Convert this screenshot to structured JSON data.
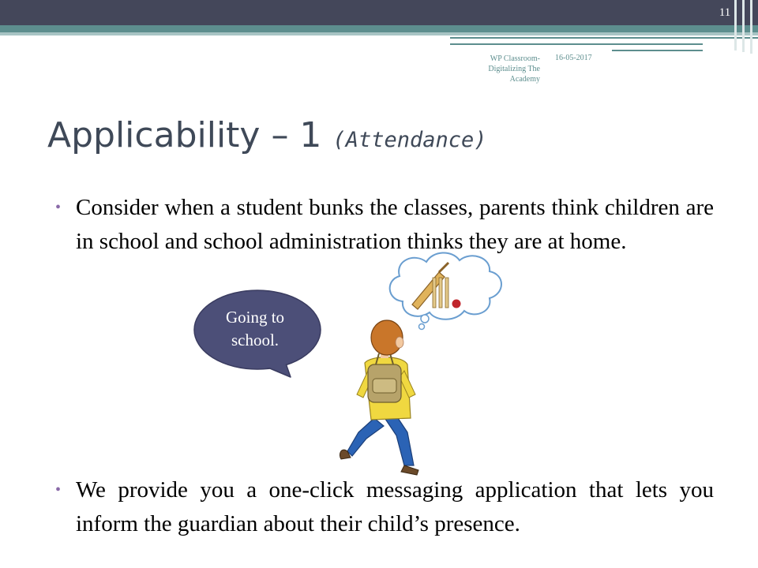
{
  "slide": {
    "number": "11",
    "footer_title": "WP Classroom- Digitalizing The Academy",
    "footer_date": "16-05-2017",
    "title_main": "Applicability – 1",
    "title_sub": "(Attendance)",
    "bullets": [
      "Consider when a student bunks the classes, parents think children are in school and school administration thinks they are at home.",
      "We provide you a one-click messaging application that lets you inform the guardian about their child’s presence."
    ],
    "speech_bubble": "Going to school."
  },
  "colors": {
    "header_dark": "#44475a",
    "accent_teal": "#5d8e8e",
    "title_color": "#3f4958",
    "bullet_color": "#8a6aa8",
    "bubble_fill": "#4c4f78"
  },
  "icons": [
    "boy-with-backpack-illustration",
    "thought-cloud-cricket-icon",
    "speech-bubble"
  ]
}
